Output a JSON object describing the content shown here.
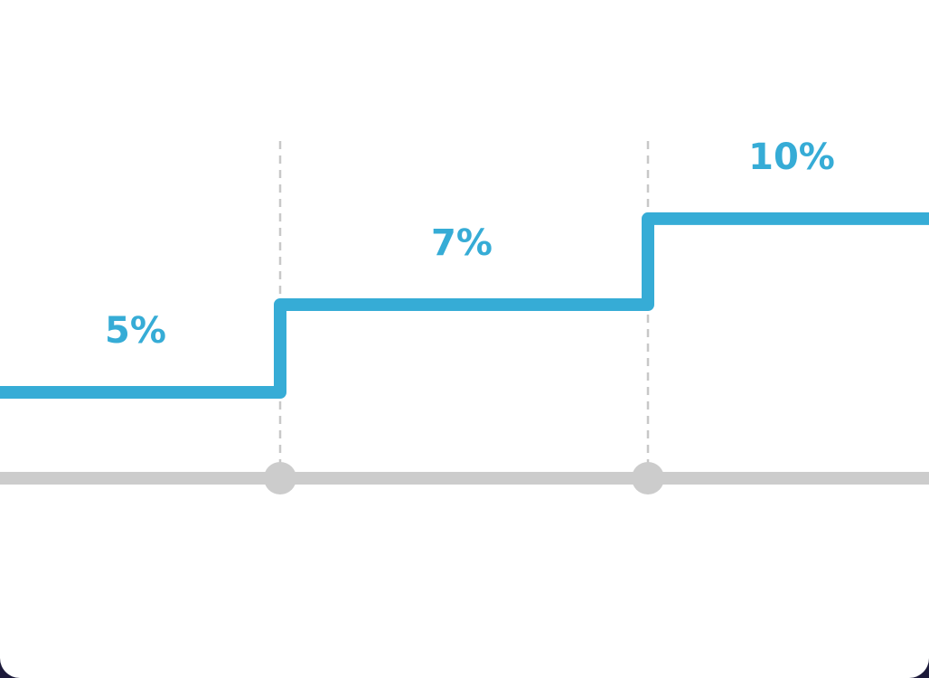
{
  "chart_data": {
    "type": "line",
    "subtype": "step",
    "title": "",
    "xlabel": "",
    "ylabel": "",
    "tiers": [
      {
        "label": "5%",
        "value": 5
      },
      {
        "label": "7%",
        "value": 7
      },
      {
        "label": "10%",
        "value": 10
      }
    ],
    "breakpoint_count": 2,
    "grid": false,
    "legend": "none",
    "colors": {
      "line": "#36acd6",
      "label": "#36acd6",
      "axis": "#cccccc",
      "guide": "#c8c8c8",
      "background": "#ffffff"
    }
  }
}
